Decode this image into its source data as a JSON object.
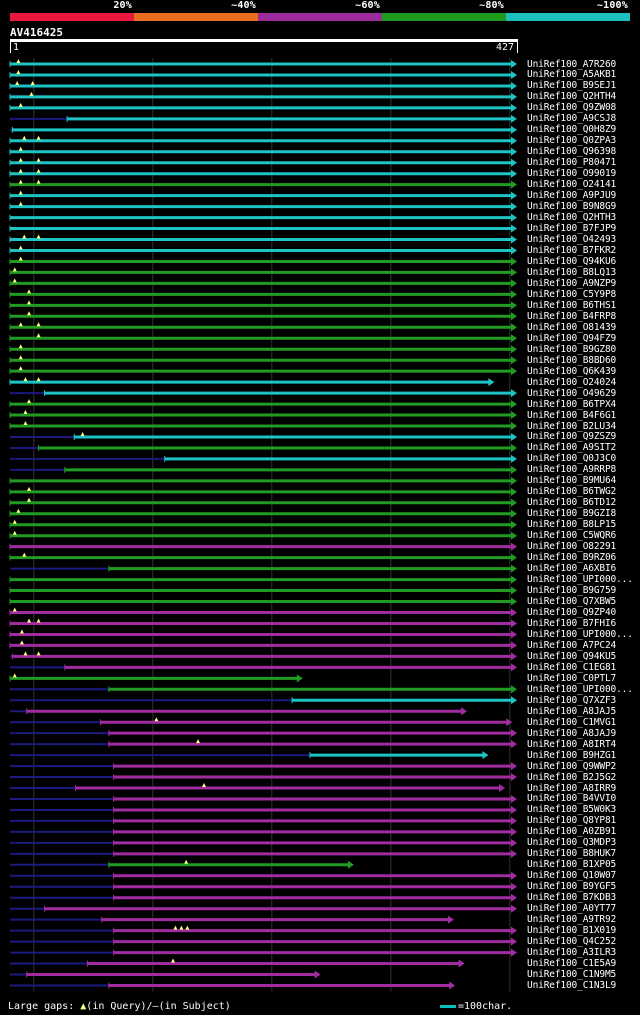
{
  "legend": {
    "segments": [
      {
        "label": "20%",
        "color": "#e8193c"
      },
      {
        "label": "~40%",
        "color": "#e86e1e"
      },
      {
        "label": "~60%",
        "color": "#9b2a9b"
      },
      {
        "label": "~80%",
        "color": "#1e9b1e"
      },
      {
        "label": "~100%",
        "color": "#1ebebe"
      }
    ]
  },
  "query": {
    "id": "AV416425",
    "start": "1",
    "end": "427",
    "length": 427
  },
  "colors": {
    "c": "#1ec3c3",
    "g": "#229b22",
    "p": "#a02ca0",
    "gap": "#1a1a80",
    "marker": "#ffff80",
    "grid": "#333333"
  },
  "hits": [
    {
      "acc": "UniRef100_A7R260",
      "color": "c",
      "qs": 1,
      "qe": 427,
      "gs": 0,
      "gaps": [
        8
      ]
    },
    {
      "acc": "UniRef100_A5AKB1",
      "color": "c",
      "qs": 1,
      "qe": 427,
      "gs": 0,
      "gaps": [
        8
      ]
    },
    {
      "acc": "UniRef100_B9SEJ1",
      "color": "c",
      "qs": 1,
      "qe": 427,
      "gs": 0,
      "gaps": [
        7,
        20
      ]
    },
    {
      "acc": "UniRef100_Q2HTH4",
      "color": "c",
      "qs": 1,
      "qe": 427,
      "gs": 0,
      "gaps": [
        19
      ]
    },
    {
      "acc": "UniRef100_Q9ZW08",
      "color": "c",
      "qs": 1,
      "qe": 427,
      "gs": 0,
      "gaps": [
        10
      ]
    },
    {
      "acc": "UniRef100_A9CSJ8",
      "color": "c",
      "qs": 49,
      "qe": 427,
      "gs": 1,
      "gaps": []
    },
    {
      "acc": "UniRef100_Q0H8Z9",
      "color": "c",
      "qs": 3,
      "qe": 427,
      "gs": 1,
      "gaps": []
    },
    {
      "acc": "UniRef100_Q0ZPA3",
      "color": "c",
      "qs": 1,
      "qe": 427,
      "gs": 0,
      "gaps": [
        13,
        25
      ]
    },
    {
      "acc": "UniRef100_Q96398",
      "color": "c",
      "qs": 1,
      "qe": 427,
      "gs": 0,
      "gaps": [
        10
      ]
    },
    {
      "acc": "UniRef100_P80471",
      "color": "c",
      "qs": 1,
      "qe": 427,
      "gs": 0,
      "gaps": [
        10,
        25
      ]
    },
    {
      "acc": "UniRef100_O99019",
      "color": "c",
      "qs": 1,
      "qe": 427,
      "gs": 0,
      "gaps": [
        10,
        25
      ]
    },
    {
      "acc": "UniRef100_O24141",
      "color": "g",
      "qs": 1,
      "qe": 427,
      "gs": 0,
      "gaps": [
        10,
        25
      ]
    },
    {
      "acc": "UniRef100_A9PJU9",
      "color": "c",
      "qs": 1,
      "qe": 427,
      "gs": 0,
      "gaps": [
        10
      ]
    },
    {
      "acc": "UniRef100_B9N8G9",
      "color": "c",
      "qs": 1,
      "qe": 427,
      "gs": 0,
      "gaps": [
        10
      ]
    },
    {
      "acc": "UniRef100_Q2HTH3",
      "color": "c",
      "qs": 1,
      "qe": 427,
      "gs": 0,
      "gaps": []
    },
    {
      "acc": "UniRef100_B7FJP9",
      "color": "c",
      "qs": 1,
      "qe": 427,
      "gs": 0,
      "gaps": []
    },
    {
      "acc": "UniRef100_O42493",
      "color": "c",
      "qs": 1,
      "qe": 427,
      "gs": 0,
      "gaps": [
        13,
        25
      ]
    },
    {
      "acc": "UniRef100_B7FKR2",
      "color": "c",
      "qs": 1,
      "qe": 427,
      "gs": 0,
      "gaps": [
        10
      ]
    },
    {
      "acc": "UniRef100_Q94KU6",
      "color": "g",
      "qs": 1,
      "qe": 427,
      "gs": 0,
      "gaps": [
        10
      ]
    },
    {
      "acc": "UniRef100_B8LQ13",
      "color": "g",
      "qs": 1,
      "qe": 427,
      "gs": 0,
      "gaps": [
        5
      ]
    },
    {
      "acc": "UniRef100_A9NZP9",
      "color": "g",
      "qs": 1,
      "qe": 427,
      "gs": 0,
      "gaps": [
        5
      ]
    },
    {
      "acc": "UniRef100_C5Y9P8",
      "color": "g",
      "qs": 1,
      "qe": 427,
      "gs": 0,
      "gaps": [
        17
      ]
    },
    {
      "acc": "UniRef100_B6THS1",
      "color": "g",
      "qs": 1,
      "qe": 427,
      "gs": 0,
      "gaps": [
        17
      ]
    },
    {
      "acc": "UniRef100_B4FRP8",
      "color": "g",
      "qs": 1,
      "qe": 427,
      "gs": 0,
      "gaps": [
        17
      ]
    },
    {
      "acc": "UniRef100_O81439",
      "color": "g",
      "qs": 1,
      "qe": 427,
      "gs": 0,
      "gaps": [
        10,
        25
      ]
    },
    {
      "acc": "UniRef100_Q94FZ9",
      "color": "g",
      "qs": 1,
      "qe": 427,
      "gs": 0,
      "gaps": [
        25
      ]
    },
    {
      "acc": "UniRef100_B9GZ80",
      "color": "g",
      "qs": 1,
      "qe": 427,
      "gs": 0,
      "gaps": [
        10
      ]
    },
    {
      "acc": "UniRef100_B8BD60",
      "color": "g",
      "qs": 1,
      "qe": 427,
      "gs": 0,
      "gaps": [
        10
      ]
    },
    {
      "acc": "UniRef100_Q6K439",
      "color": "g",
      "qs": 1,
      "qe": 427,
      "gs": 0,
      "gaps": [
        10
      ]
    },
    {
      "acc": "UniRef100_O24024",
      "color": "c",
      "qs": 1,
      "qe": 408,
      "gs": 0,
      "gaps": [
        14,
        25
      ]
    },
    {
      "acc": "UniRef100_O49629",
      "color": "c",
      "qs": 30,
      "qe": 427,
      "gs": 1,
      "gaps": []
    },
    {
      "acc": "UniRef100_B6TPX4",
      "color": "g",
      "qs": 1,
      "qe": 427,
      "gs": 0,
      "gaps": [
        17
      ]
    },
    {
      "acc": "UniRef100_B4F6G1",
      "color": "g",
      "qs": 1,
      "qe": 427,
      "gs": 0,
      "gaps": [
        14
      ]
    },
    {
      "acc": "UniRef100_B2LU34",
      "color": "g",
      "qs": 1,
      "qe": 427,
      "gs": 0,
      "gaps": [
        14
      ]
    },
    {
      "acc": "UniRef100_Q9ZSZ9",
      "color": "c",
      "qs": 55,
      "qe": 427,
      "gs": 1,
      "gaps": [
        62
      ]
    },
    {
      "acc": "UniRef100_A9SIT2",
      "color": "g",
      "qs": 25,
      "qe": 427,
      "gs": 1,
      "gaps": []
    },
    {
      "acc": "UniRef100_Q0J3C0",
      "color": "c",
      "qs": 131,
      "qe": 427,
      "gs": 1,
      "gaps": []
    },
    {
      "acc": "UniRef100_A9RRP8",
      "color": "g",
      "qs": 47,
      "qe": 427,
      "gs": 1,
      "gaps": []
    },
    {
      "acc": "UniRef100_B9MU64",
      "color": "g",
      "qs": 1,
      "qe": 427,
      "gs": 0,
      "gaps": []
    },
    {
      "acc": "UniRef100_B6TWG2",
      "color": "g",
      "qs": 1,
      "qe": 427,
      "gs": 0,
      "gaps": [
        17
      ]
    },
    {
      "acc": "UniRef100_B6TD12",
      "color": "g",
      "qs": 1,
      "qe": 427,
      "gs": 0,
      "gaps": [
        17
      ]
    },
    {
      "acc": "UniRef100_B9GZI8",
      "color": "g",
      "qs": 1,
      "qe": 427,
      "gs": 0,
      "gaps": [
        8
      ]
    },
    {
      "acc": "UniRef100_B8LP15",
      "color": "g",
      "qs": 1,
      "qe": 427,
      "gs": 0,
      "gaps": [
        5
      ]
    },
    {
      "acc": "UniRef100_C5WQR6",
      "color": "g",
      "qs": 1,
      "qe": 427,
      "gs": 0,
      "gaps": [
        5
      ]
    },
    {
      "acc": "UniRef100_O82291",
      "color": "p",
      "qs": 1,
      "qe": 427,
      "gs": 0,
      "gaps": []
    },
    {
      "acc": "UniRef100_B9RZ06",
      "color": "g",
      "qs": 1,
      "qe": 427,
      "gs": 0,
      "gaps": [
        13
      ]
    },
    {
      "acc": "UniRef100_A6XBI6",
      "color": "g",
      "qs": 84,
      "qe": 427,
      "gs": 1,
      "gaps": []
    },
    {
      "acc": "UniRef100_UPI000...",
      "color": "g",
      "qs": 1,
      "qe": 427,
      "gs": 0,
      "gaps": []
    },
    {
      "acc": "UniRef100_B9G759",
      "color": "g",
      "qs": 1,
      "qe": 427,
      "gs": 0,
      "gaps": []
    },
    {
      "acc": "UniRef100_Q7XBW5",
      "color": "g",
      "qs": 1,
      "qe": 427,
      "gs": 0,
      "gaps": []
    },
    {
      "acc": "UniRef100_Q9ZP40",
      "color": "p",
      "qs": 1,
      "qe": 427,
      "gs": 0,
      "gaps": [
        5
      ]
    },
    {
      "acc": "UniRef100_B7FHI6",
      "color": "p",
      "qs": 1,
      "qe": 427,
      "gs": 0,
      "gaps": [
        17,
        25
      ]
    },
    {
      "acc": "UniRef100_UPI000...",
      "color": "p",
      "qs": 1,
      "qe": 427,
      "gs": 0,
      "gaps": [
        11
      ]
    },
    {
      "acc": "UniRef100_A7PC24",
      "color": "p",
      "qs": 1,
      "qe": 427,
      "gs": 0,
      "gaps": [
        11
      ]
    },
    {
      "acc": "UniRef100_Q94KU5",
      "color": "p",
      "qs": 3,
      "qe": 427,
      "gs": 1,
      "gaps": [
        14,
        25
      ]
    },
    {
      "acc": "UniRef100_C1EG81",
      "color": "p",
      "qs": 47,
      "qe": 427,
      "gs": 1,
      "gaps": []
    },
    {
      "acc": "UniRef100_C0PTL7",
      "color": "g",
      "qs": 1,
      "qe": 247,
      "gs": 0,
      "gaps": [
        5
      ]
    },
    {
      "acc": "UniRef100_UPI000...",
      "color": "g",
      "qs": 84,
      "qe": 427,
      "gs": 1,
      "gaps": []
    },
    {
      "acc": "UniRef100_Q7XZF3",
      "color": "c",
      "qs": 238,
      "qe": 427,
      "gs": 1,
      "gaps": []
    },
    {
      "acc": "UniRef100_A8JAJ5",
      "color": "p",
      "qs": 15,
      "qe": 385,
      "gs": 1,
      "gaps": []
    },
    {
      "acc": "UniRef100_C1MVG1",
      "color": "p",
      "qs": 77,
      "qe": 423,
      "gs": 1,
      "gaps": [
        124
      ]
    },
    {
      "acc": "UniRef100_A8JAJ9",
      "color": "p",
      "qs": 84,
      "qe": 427,
      "gs": 1,
      "gaps": []
    },
    {
      "acc": "UniRef100_A8IRT4",
      "color": "p",
      "qs": 84,
      "qe": 427,
      "gs": 1,
      "gaps": [
        159
      ]
    },
    {
      "acc": "UniRef100_B9HZG1",
      "color": "c",
      "qs": 253,
      "qe": 403,
      "gs": 1,
      "gaps": []
    },
    {
      "acc": "UniRef100_Q9WWP2",
      "color": "p",
      "qs": 88,
      "qe": 427,
      "gs": 1,
      "gaps": []
    },
    {
      "acc": "UniRef100_B2J5G2",
      "color": "p",
      "qs": 88,
      "qe": 427,
      "gs": 1,
      "gaps": []
    },
    {
      "acc": "UniRef100_A8IRR9",
      "color": "p",
      "qs": 56,
      "qe": 417,
      "gs": 1,
      "gaps": [
        164
      ]
    },
    {
      "acc": "UniRef100_B4VVI0",
      "color": "p",
      "qs": 88,
      "qe": 427,
      "gs": 1,
      "gaps": []
    },
    {
      "acc": "UniRef100_B5W0K3",
      "color": "p",
      "qs": 88,
      "qe": 427,
      "gs": 1,
      "gaps": []
    },
    {
      "acc": "UniRef100_Q8YP81",
      "color": "p",
      "qs": 88,
      "qe": 427,
      "gs": 1,
      "gaps": []
    },
    {
      "acc": "UniRef100_A0ZB91",
      "color": "p",
      "qs": 88,
      "qe": 427,
      "gs": 1,
      "gaps": []
    },
    {
      "acc": "UniRef100_Q3MDP3",
      "color": "p",
      "qs": 88,
      "qe": 427,
      "gs": 1,
      "gaps": []
    },
    {
      "acc": "UniRef100_B8HUK7",
      "color": "p",
      "qs": 88,
      "qe": 427,
      "gs": 1,
      "gaps": []
    },
    {
      "acc": "UniRef100_B1XP05",
      "color": "g",
      "qs": 84,
      "qe": 290,
      "gs": 1,
      "gaps": [
        149
      ]
    },
    {
      "acc": "UniRef100_Q10W07",
      "color": "p",
      "qs": 88,
      "qe": 427,
      "gs": 1,
      "gaps": []
    },
    {
      "acc": "UniRef100_B9YGF5",
      "color": "p",
      "qs": 88,
      "qe": 427,
      "gs": 1,
      "gaps": []
    },
    {
      "acc": "UniRef100_B7KDB3",
      "color": "p",
      "qs": 88,
      "qe": 427,
      "gs": 1,
      "gaps": []
    },
    {
      "acc": "UniRef100_A0YT77",
      "color": "p",
      "qs": 30,
      "qe": 427,
      "gs": 1,
      "gaps": []
    },
    {
      "acc": "UniRef100_A9TR92",
      "color": "p",
      "qs": 78,
      "qe": 374,
      "gs": 1,
      "gaps": []
    },
    {
      "acc": "UniRef100_B1X019",
      "color": "p",
      "qs": 88,
      "qe": 427,
      "gs": 1,
      "gaps": [
        140,
        145,
        150
      ]
    },
    {
      "acc": "UniRef100_Q4C252",
      "color": "p",
      "qs": 88,
      "qe": 427,
      "gs": 1,
      "gaps": []
    },
    {
      "acc": "UniRef100_A3ILR3",
      "color": "p",
      "qs": 88,
      "qe": 427,
      "gs": 1,
      "gaps": []
    },
    {
      "acc": "UniRef100_C1E5A9",
      "color": "p",
      "qs": 66,
      "qe": 383,
      "gs": 1,
      "gaps": [
        138
      ]
    },
    {
      "acc": "UniRef100_C1N9M5",
      "color": "p",
      "qs": 15,
      "qe": 262,
      "gs": 1,
      "gaps": []
    },
    {
      "acc": "UniRef100_C1N3L9",
      "color": "p",
      "qs": 84,
      "qe": 375,
      "gs": 1,
      "gaps": []
    }
  ],
  "footer": {
    "gaps_label": "Large gaps:",
    "query_marker": "▲",
    "query_text": "(in Query)/",
    "subject_marker": "—",
    "subject_text": "(in Subject)",
    "scale_text": "=100char."
  }
}
